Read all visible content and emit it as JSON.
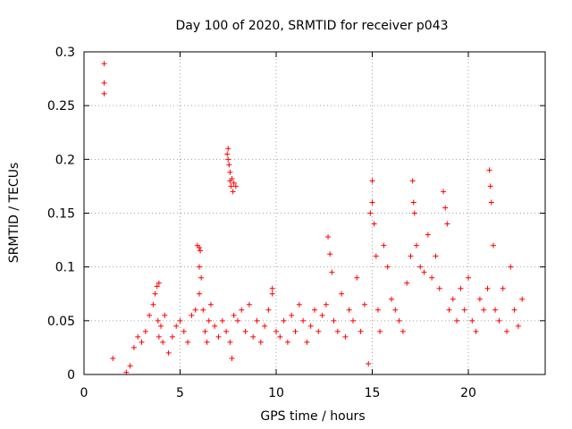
{
  "chart_data": {
    "type": "scatter",
    "title": "Day 100 of 2020, SRMTID for receiver p043",
    "xlabel": "GPS time / hours",
    "ylabel": "SRMTID / TECUs",
    "xlim": [
      0,
      24
    ],
    "ylim": [
      0,
      0.3
    ],
    "x_ticks": [
      0,
      5,
      10,
      15,
      20
    ],
    "y_ticks": [
      0,
      0.05,
      0.1,
      0.15,
      0.2,
      0.25,
      0.3
    ],
    "x_tick_labels": [
      "0",
      "5",
      "10",
      "15",
      "20"
    ],
    "y_tick_labels": [
      "0",
      "0.05",
      "0.1",
      "0.15",
      "0.2",
      "0.25",
      "0.3"
    ],
    "grid": true,
    "marker": "+",
    "color": "#ff0000",
    "series": [
      {
        "name": "SRMTID",
        "points": [
          [
            1.05,
            0.289
          ],
          [
            1.05,
            0.271
          ],
          [
            1.05,
            0.261
          ],
          [
            1.5,
            0.015
          ],
          [
            2.2,
            0.002
          ],
          [
            2.4,
            0.008
          ],
          [
            2.6,
            0.025
          ],
          [
            2.8,
            0.035
          ],
          [
            3.0,
            0.03
          ],
          [
            3.2,
            0.04
          ],
          [
            3.4,
            0.055
          ],
          [
            3.6,
            0.065
          ],
          [
            3.8,
            0.082
          ],
          [
            3.9,
            0.085
          ],
          [
            3.7,
            0.075
          ],
          [
            3.85,
            0.05
          ],
          [
            3.9,
            0.035
          ],
          [
            4.0,
            0.045
          ],
          [
            4.1,
            0.03
          ],
          [
            4.2,
            0.055
          ],
          [
            4.4,
            0.02
          ],
          [
            4.6,
            0.035
          ],
          [
            4.8,
            0.045
          ],
          [
            5.0,
            0.05
          ],
          [
            5.2,
            0.04
          ],
          [
            5.4,
            0.03
          ],
          [
            5.6,
            0.055
          ],
          [
            5.8,
            0.06
          ],
          [
            5.9,
            0.12
          ],
          [
            6.0,
            0.118
          ],
          [
            6.05,
            0.115
          ],
          [
            6.0,
            0.1
          ],
          [
            6.1,
            0.09
          ],
          [
            6.0,
            0.075
          ],
          [
            6.2,
            0.06
          ],
          [
            6.3,
            0.04
          ],
          [
            6.4,
            0.03
          ],
          [
            6.5,
            0.05
          ],
          [
            6.6,
            0.065
          ],
          [
            6.8,
            0.045
          ],
          [
            7.0,
            0.035
          ],
          [
            7.2,
            0.05
          ],
          [
            7.4,
            0.04
          ],
          [
            7.45,
            0.205
          ],
          [
            7.5,
            0.21
          ],
          [
            7.5,
            0.2
          ],
          [
            7.55,
            0.195
          ],
          [
            7.6,
            0.188
          ],
          [
            7.6,
            0.18
          ],
          [
            7.65,
            0.175
          ],
          [
            7.7,
            0.182
          ],
          [
            7.75,
            0.17
          ],
          [
            7.8,
            0.178
          ],
          [
            7.9,
            0.175
          ],
          [
            7.7,
            0.015
          ],
          [
            7.6,
            0.03
          ],
          [
            7.8,
            0.055
          ],
          [
            8.0,
            0.05
          ],
          [
            8.2,
            0.06
          ],
          [
            8.4,
            0.04
          ],
          [
            8.6,
            0.065
          ],
          [
            8.8,
            0.035
          ],
          [
            9.0,
            0.05
          ],
          [
            9.2,
            0.03
          ],
          [
            9.4,
            0.045
          ],
          [
            9.6,
            0.06
          ],
          [
            9.8,
            0.075
          ],
          [
            9.8,
            0.08
          ],
          [
            10.0,
            0.04
          ],
          [
            10.2,
            0.035
          ],
          [
            10.4,
            0.05
          ],
          [
            10.6,
            0.03
          ],
          [
            10.8,
            0.055
          ],
          [
            11.0,
            0.04
          ],
          [
            11.2,
            0.065
          ],
          [
            11.4,
            0.05
          ],
          [
            11.6,
            0.03
          ],
          [
            11.8,
            0.045
          ],
          [
            12.0,
            0.06
          ],
          [
            12.2,
            0.04
          ],
          [
            12.4,
            0.055
          ],
          [
            12.6,
            0.065
          ],
          [
            12.7,
            0.128
          ],
          [
            12.8,
            0.112
          ],
          [
            12.9,
            0.095
          ],
          [
            13.0,
            0.05
          ],
          [
            13.2,
            0.04
          ],
          [
            13.4,
            0.075
          ],
          [
            13.6,
            0.035
          ],
          [
            13.8,
            0.06
          ],
          [
            14.0,
            0.05
          ],
          [
            14.2,
            0.09
          ],
          [
            14.4,
            0.04
          ],
          [
            14.6,
            0.065
          ],
          [
            14.8,
            0.01
          ],
          [
            14.9,
            0.15
          ],
          [
            15.0,
            0.18
          ],
          [
            15.0,
            0.16
          ],
          [
            15.1,
            0.14
          ],
          [
            15.2,
            0.11
          ],
          [
            15.3,
            0.06
          ],
          [
            15.4,
            0.04
          ],
          [
            15.6,
            0.12
          ],
          [
            15.8,
            0.1
          ],
          [
            16.0,
            0.07
          ],
          [
            16.2,
            0.06
          ],
          [
            16.4,
            0.05
          ],
          [
            16.6,
            0.04
          ],
          [
            16.8,
            0.085
          ],
          [
            17.0,
            0.11
          ],
          [
            17.1,
            0.18
          ],
          [
            17.15,
            0.16
          ],
          [
            17.2,
            0.15
          ],
          [
            17.3,
            0.12
          ],
          [
            17.5,
            0.1
          ],
          [
            17.7,
            0.095
          ],
          [
            17.9,
            0.13
          ],
          [
            18.1,
            0.09
          ],
          [
            18.3,
            0.11
          ],
          [
            18.5,
            0.08
          ],
          [
            18.7,
            0.17
          ],
          [
            18.8,
            0.155
          ],
          [
            18.9,
            0.14
          ],
          [
            19.0,
            0.06
          ],
          [
            19.2,
            0.07
          ],
          [
            19.4,
            0.05
          ],
          [
            19.6,
            0.08
          ],
          [
            19.8,
            0.06
          ],
          [
            20.0,
            0.09
          ],
          [
            20.2,
            0.05
          ],
          [
            20.4,
            0.04
          ],
          [
            20.6,
            0.07
          ],
          [
            20.8,
            0.06
          ],
          [
            21.0,
            0.08
          ],
          [
            21.1,
            0.19
          ],
          [
            21.15,
            0.175
          ],
          [
            21.2,
            0.16
          ],
          [
            21.3,
            0.12
          ],
          [
            21.4,
            0.06
          ],
          [
            21.6,
            0.05
          ],
          [
            21.8,
            0.08
          ],
          [
            22.0,
            0.04
          ],
          [
            22.2,
            0.1
          ],
          [
            22.4,
            0.06
          ],
          [
            22.6,
            0.045
          ],
          [
            22.8,
            0.07
          ]
        ]
      }
    ]
  }
}
